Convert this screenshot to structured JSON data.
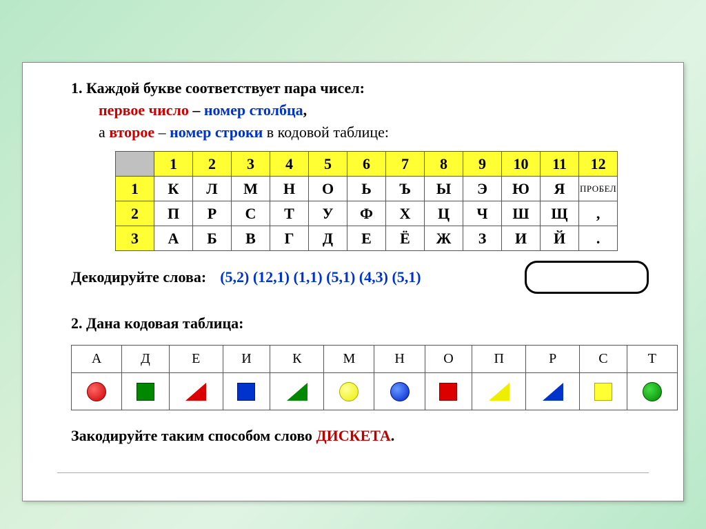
{
  "task1": {
    "number": "1.",
    "intro": "Каждой букве соответствует пара чисел:",
    "part_first": "первое число",
    "dash1": " – ",
    "col_label": "номер столбца",
    "comma": ",",
    "part_a": "а ",
    "part_second": "второе",
    "dash2": " – ",
    "row_label": "номер строки",
    "tail": " в кодовой таблице:"
  },
  "code_table": {
    "cols": [
      "1",
      "2",
      "3",
      "4",
      "5",
      "6",
      "7",
      "8",
      "9",
      "10",
      "11",
      "12"
    ],
    "rows": [
      {
        "n": "1",
        "cells": [
          "К",
          "Л",
          "М",
          "Н",
          "О",
          "Ь",
          "Ъ",
          "Ы",
          "Э",
          "Ю",
          "Я",
          "ПРОБЕЛ"
        ]
      },
      {
        "n": "2",
        "cells": [
          "П",
          "Р",
          "С",
          "Т",
          "У",
          "Ф",
          "Х",
          "Ц",
          "Ч",
          "Ш",
          "Щ",
          ","
        ]
      },
      {
        "n": "3",
        "cells": [
          "А",
          "Б",
          "В",
          "Г",
          "Д",
          "Е",
          "Ё",
          "Ж",
          "З",
          "И",
          "Й",
          "."
        ]
      }
    ]
  },
  "decode": {
    "label": "Декодируйте слова:",
    "codes": "(5,2)  (12,1)  (1,1)  (5,1)  (4,3)  (5,1)"
  },
  "task2": {
    "line": "2. Дана кодовая таблица:"
  },
  "shape_table": {
    "letters": [
      "А",
      "Д",
      "Е",
      "И",
      "К",
      "М",
      "Н",
      "О",
      "П",
      "Р",
      "С",
      "Т"
    ],
    "shapes": [
      "circ-red",
      "sq-grn",
      "tri-red",
      "sq-blu",
      "tri-grn",
      "circ-yel",
      "circ-blu",
      "sq-red",
      "tri-yel",
      "tri-blu",
      "sq-yel",
      "circ-grn"
    ]
  },
  "encode": {
    "prefix": "Закодируйте таким способом слово ",
    "word": "ДИСКЕТА",
    "dot": "."
  },
  "colors": {
    "red": "#cc0000",
    "blue": "#0033cc",
    "yellow_hdr": "#ffff33",
    "grey_corner": "#c0c0c0",
    "green_shape": "#008800"
  }
}
